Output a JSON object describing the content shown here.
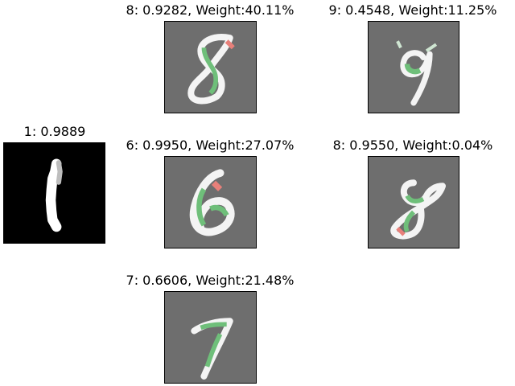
{
  "query": {
    "title": "1: 0.9889",
    "background": "#000000",
    "digit_color": "#ffffff"
  },
  "explanations": [
    {
      "title": "8: 0.9282, Weight:40.11%",
      "digit": "8"
    },
    {
      "title": "9: 0.4548, Weight:11.25%",
      "digit": "9"
    },
    {
      "title": "6: 0.9950, Weight:27.07%",
      "digit": "6"
    },
    {
      "title": "8: 0.9550, Weight:0.04%",
      "digit": "8"
    },
    {
      "title": "7: 0.6606, Weight:21.48%",
      "digit": "7"
    }
  ],
  "colors": {
    "tile_background": "#6e6e6e",
    "stroke_white": "#f4f4f4",
    "stroke_green": "#6fbf7a",
    "stroke_red": "#e8807a"
  }
}
